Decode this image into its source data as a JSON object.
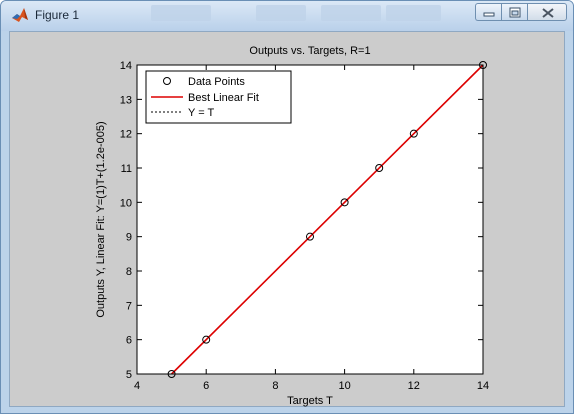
{
  "window": {
    "title": "Figure 1",
    "icon": "matlab-logo-icon",
    "controls": [
      "minimize-icon",
      "maximize-icon",
      "close-icon"
    ]
  },
  "colors": {
    "figure_background": "#cccccc",
    "axes_background": "#ffffff",
    "fit_line": "#dd0000",
    "identity_line": "#000000",
    "markers": "#000000"
  },
  "chart_data": {
    "type": "scatter",
    "title": "Outputs vs. Targets, R=1",
    "xlabel": "Targets T",
    "ylabel": "Outputs Y,  Linear Fit: Y=(1)T+(1.2e-005)",
    "xlim": [
      4,
      14
    ],
    "ylim": [
      5,
      14
    ],
    "xticks": [
      4,
      6,
      8,
      10,
      12,
      14
    ],
    "yticks": [
      5,
      6,
      7,
      8,
      9,
      10,
      11,
      12,
      13,
      14
    ],
    "grid": false,
    "legend_position": "top-left",
    "series": [
      {
        "name": "Data Points",
        "kind": "markers",
        "marker": "circle",
        "x": [
          5,
          6,
          9,
          10,
          11,
          12,
          14
        ],
        "y": [
          5,
          6,
          9,
          10,
          11,
          12,
          14
        ]
      },
      {
        "name": "Best Linear Fit",
        "kind": "line",
        "style": "solid",
        "x": [
          5,
          14
        ],
        "y": [
          5,
          14
        ]
      },
      {
        "name": "Y = T",
        "kind": "line",
        "style": "dotted",
        "x": [
          5,
          14
        ],
        "y": [
          5,
          14
        ]
      }
    ]
  }
}
